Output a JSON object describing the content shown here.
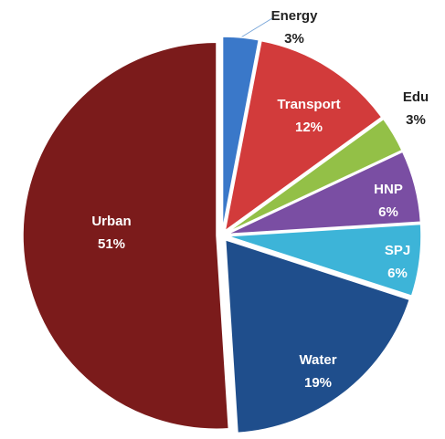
{
  "chart_data": {
    "type": "pie",
    "categories": [
      "Energy",
      "Transport",
      "Edu",
      "HNP",
      "SPJ",
      "Water",
      "Urban"
    ],
    "values": [
      3,
      12,
      3,
      6,
      6,
      19,
      51
    ],
    "value_labels": [
      "3%",
      "12%",
      "3%",
      "6%",
      "6%",
      "19%",
      "51%"
    ],
    "colors": [
      "#3a78c9",
      "#d23b3b",
      "#93c047",
      "#7a4ea3",
      "#3db4d8",
      "#1f4e8c",
      "#7b1b1b"
    ]
  }
}
